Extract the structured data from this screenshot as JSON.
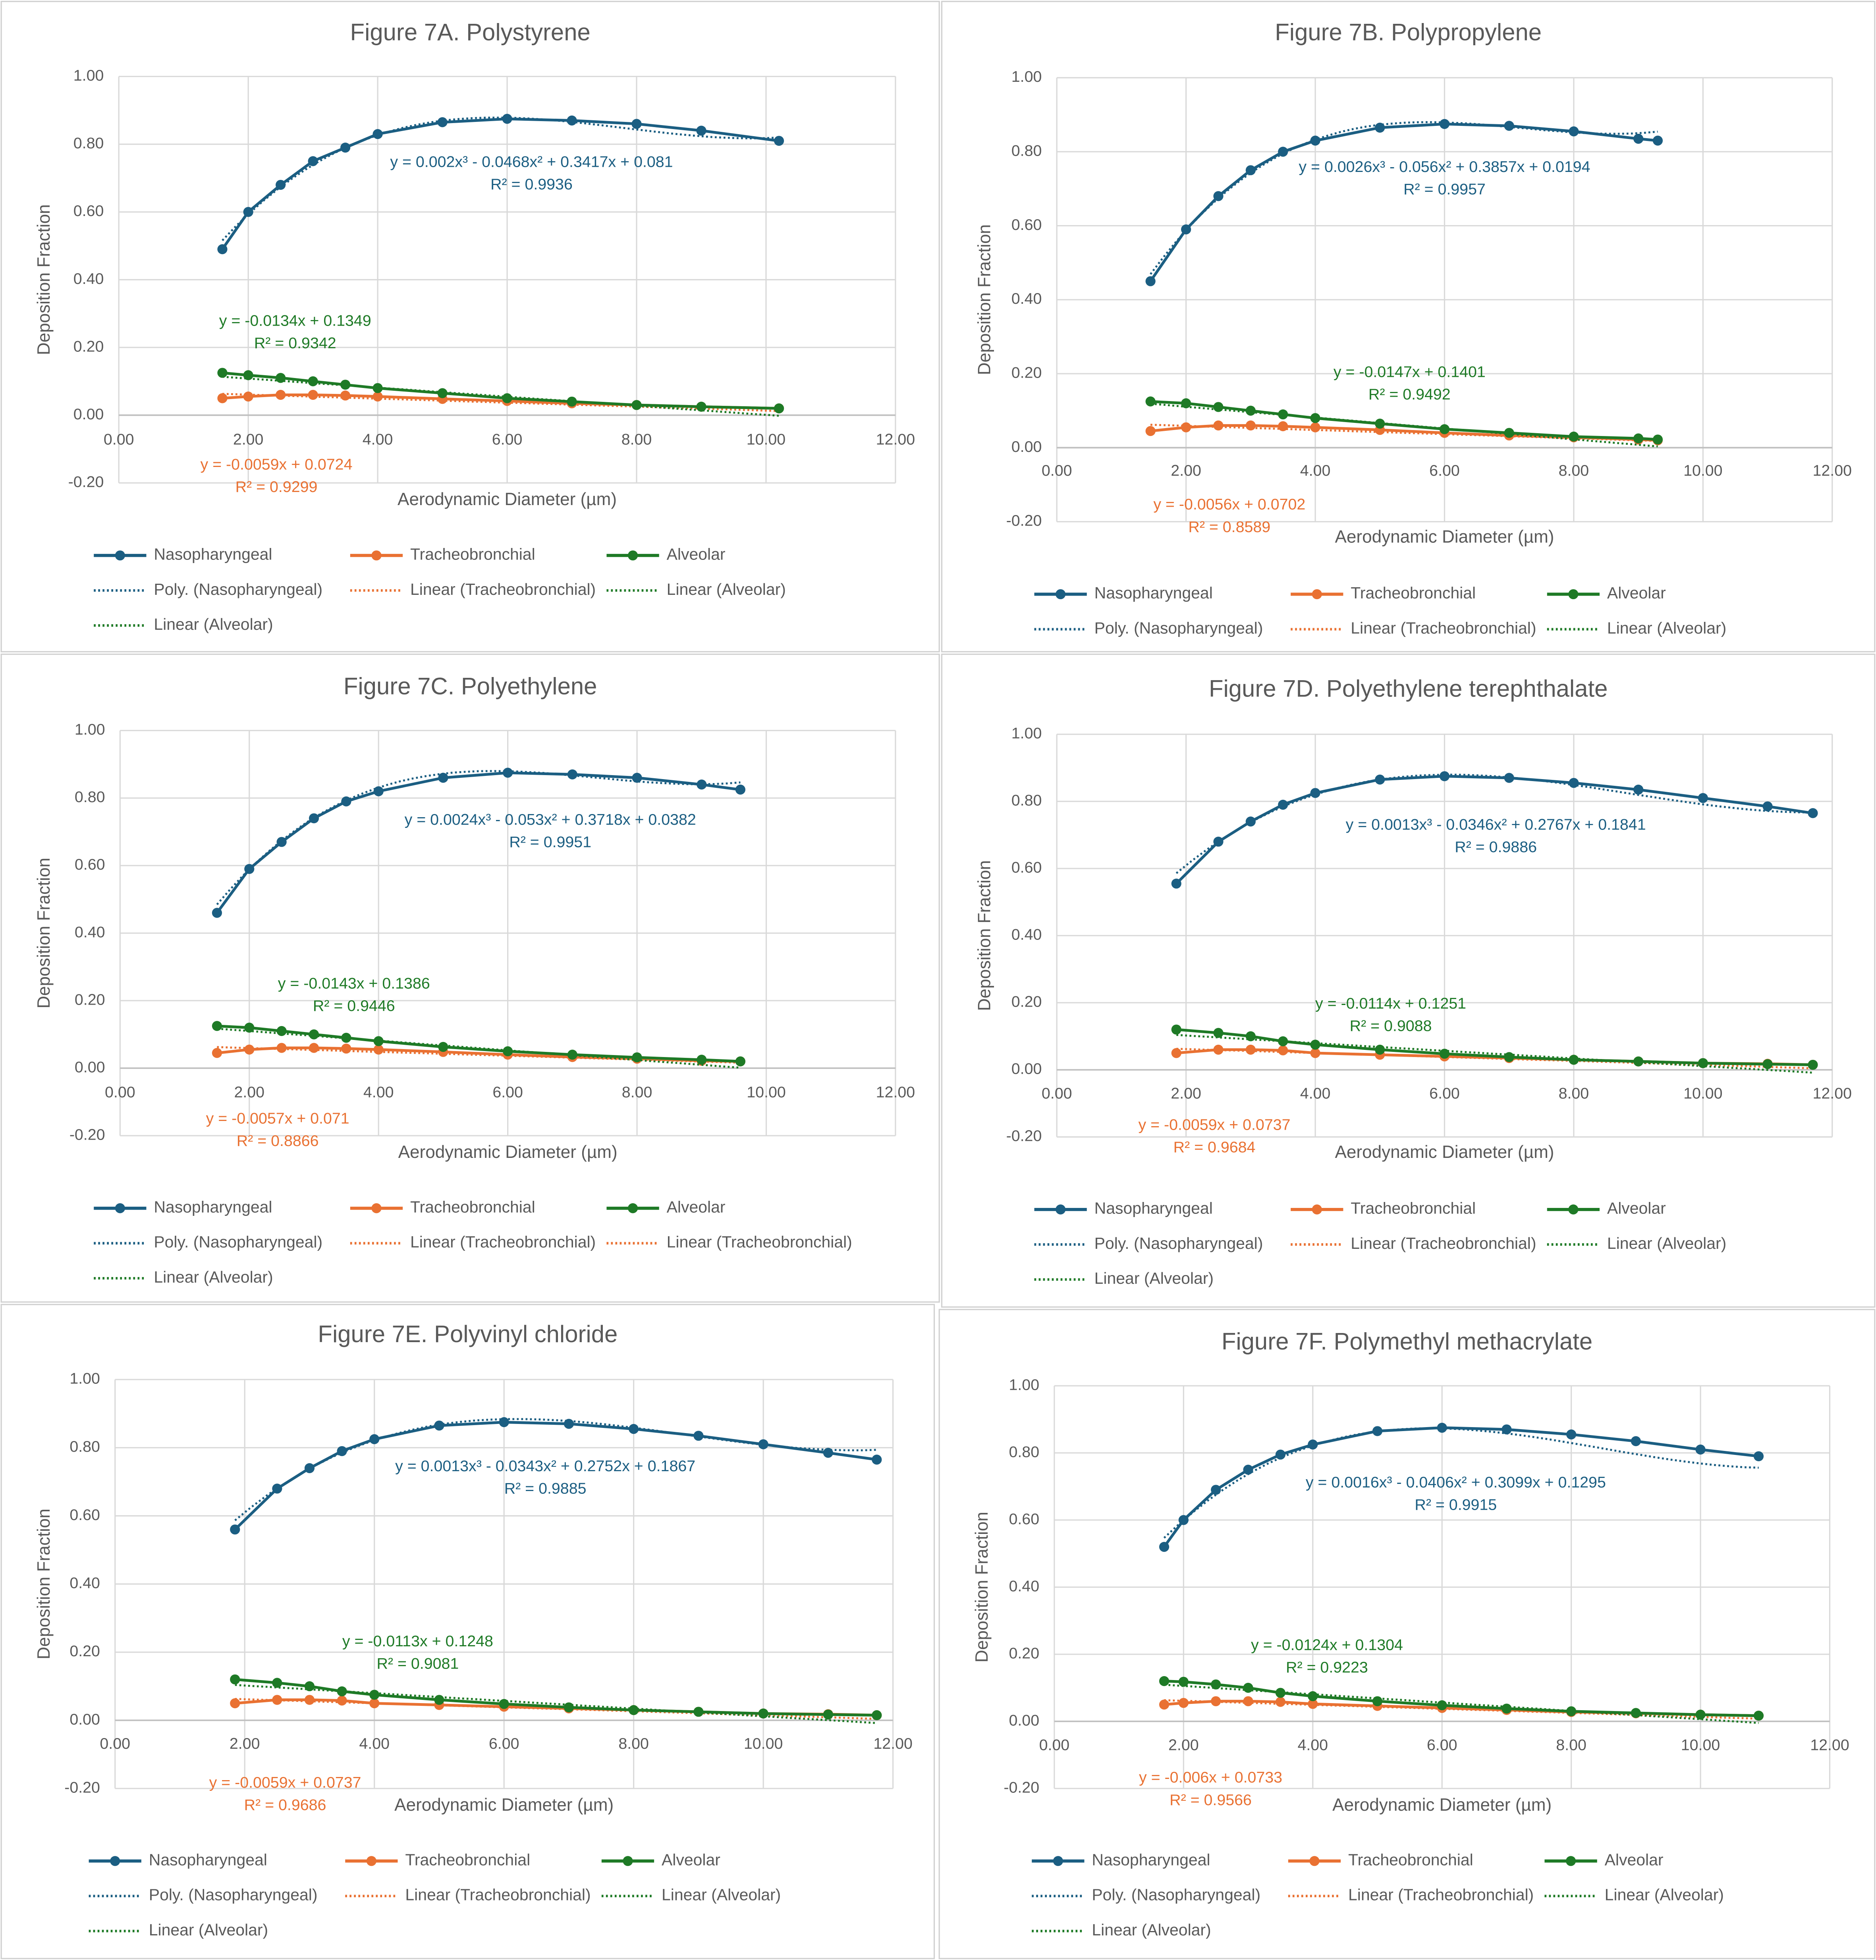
{
  "colors": {
    "Nasopharyngeal": "#1b5e82",
    "Tracheobronchial": "#e97132",
    "Alveolar": "#1e7a26",
    "grid": "#d9d9d9",
    "text": "#595959"
  },
  "chart_data": [
    {
      "type": "scatter",
      "title": "Figure 7A. Polystyrene",
      "xlabel": "Aerodynamic Diameter (µm)",
      "ylabel": "Deposition Fraction",
      "xlim": [
        0,
        12
      ],
      "ylim": [
        -0.2,
        1.0
      ],
      "grid": true,
      "legend": "bottom",
      "xticks": [
        "0.00",
        "2.00",
        "4.00",
        "6.00",
        "8.00",
        "10.00",
        "12.00"
      ],
      "yticks": [
        "-0.20",
        "0.00",
        "0.20",
        "0.40",
        "0.60",
        "0.80",
        "1.00"
      ],
      "x": [
        1.6,
        2,
        2.5,
        3,
        3.5,
        4,
        5,
        6,
        7,
        8,
        9,
        10.2
      ],
      "series": [
        {
          "name": "Nasopharyngeal",
          "values": [
            0.49,
            0.6,
            0.68,
            0.75,
            0.79,
            0.83,
            0.865,
            0.875,
            0.87,
            0.86,
            0.84,
            0.81
          ],
          "trend": {
            "type": "poly",
            "coefficients": [
              0.081,
              0.3417,
              -0.0468,
              0.002
            ],
            "equation": "y = 0.002x³ - 0.0468x² + 0.3417x + 0.081",
            "r2": "R² = 0.9936"
          }
        },
        {
          "name": "Tracheobronchial",
          "values": [
            0.05,
            0.055,
            0.06,
            0.06,
            0.058,
            0.055,
            0.048,
            0.042,
            0.035,
            0.03,
            0.025,
            0.02
          ],
          "trend": {
            "type": "linear",
            "coefficients": [
              0.0724,
              -0.0059
            ],
            "equation": "y = -0.0059x + 0.0724",
            "r2": "R² = 0.9299"
          }
        },
        {
          "name": "Alveolar",
          "values": [
            0.125,
            0.118,
            0.11,
            0.1,
            0.09,
            0.08,
            0.065,
            0.05,
            0.04,
            0.03,
            0.025,
            0.02
          ],
          "trend": {
            "type": "linear",
            "coefficients": [
              0.1349,
              -0.0134
            ],
            "equation": "y = -0.0134x + 0.1349",
            "r2": "R² = 0.9342"
          }
        }
      ],
      "legend_entries": [
        "Nasopharyngeal",
        "Tracheobronchial",
        "Alveolar",
        "Poly. (Nasopharyngeal)",
        "Linear (Tracheobronchial)",
        "Linear (Alveolar)",
        "Linear (Alveolar)"
      ]
    },
    {
      "type": "scatter",
      "title": "Figure 7B. Polypropylene",
      "xlabel": "Aerodynamic Diameter (µm)",
      "ylabel": "Deposition Fraction",
      "xlim": [
        0,
        12
      ],
      "ylim": [
        -0.2,
        1.0
      ],
      "grid": true,
      "legend": "bottom",
      "xticks": [
        "0.00",
        "2.00",
        "4.00",
        "6.00",
        "8.00",
        "10.00",
        "12.00"
      ],
      "yticks": [
        "-0.20",
        "0.00",
        "0.20",
        "0.40",
        "0.60",
        "0.80",
        "1.00"
      ],
      "x": [
        1.45,
        2,
        2.5,
        3,
        3.5,
        4,
        5,
        6,
        7,
        8,
        9,
        9.3
      ],
      "series": [
        {
          "name": "Nasopharyngeal",
          "values": [
            0.45,
            0.59,
            0.68,
            0.75,
            0.8,
            0.83,
            0.865,
            0.875,
            0.87,
            0.855,
            0.835,
            0.83
          ],
          "trend": {
            "type": "poly",
            "coefficients": [
              0.0194,
              0.3857,
              -0.056,
              0.0026
            ],
            "equation": "y = 0.0026x³ - 0.056x² + 0.3857x + 0.0194",
            "r2": "R² = 0.9957"
          }
        },
        {
          "name": "Tracheobronchial",
          "values": [
            0.045,
            0.055,
            0.06,
            0.06,
            0.058,
            0.055,
            0.048,
            0.04,
            0.033,
            0.028,
            0.022,
            0.02
          ],
          "trend": {
            "type": "linear",
            "coefficients": [
              0.0702,
              -0.0056
            ],
            "equation": "y = -0.0056x + 0.0702",
            "r2": "R² = 0.8589"
          }
        },
        {
          "name": "Alveolar",
          "values": [
            0.125,
            0.12,
            0.11,
            0.1,
            0.09,
            0.08,
            0.065,
            0.05,
            0.04,
            0.03,
            0.025,
            0.022
          ],
          "trend": {
            "type": "linear",
            "coefficients": [
              0.1401,
              -0.0147
            ],
            "equation": "y = -0.0147x + 0.1401",
            "r2": "R² = 0.9492"
          }
        }
      ],
      "legend_entries": [
        "Nasopharyngeal",
        "Tracheobronchial",
        "Alveolar",
        "Poly. (Nasopharyngeal)",
        "Linear (Tracheobronchial)",
        "Linear (Alveolar)"
      ]
    },
    {
      "type": "scatter",
      "title": "Figure 7C. Polyethylene",
      "xlabel": "Aerodynamic Diameter (µm)",
      "ylabel": "Deposition Fraction",
      "xlim": [
        0,
        12
      ],
      "ylim": [
        -0.2,
        1.0
      ],
      "grid": true,
      "legend": "bottom",
      "xticks": [
        "0.00",
        "2.00",
        "4.00",
        "6.00",
        "8.00",
        "10.00",
        "12.00"
      ],
      "yticks": [
        "-0.20",
        "0.00",
        "0.20",
        "0.40",
        "0.60",
        "0.80",
        "1.00"
      ],
      "x": [
        1.5,
        2,
        2.5,
        3,
        3.5,
        4,
        5,
        6,
        7,
        8,
        9,
        9.6
      ],
      "series": [
        {
          "name": "Nasopharyngeal",
          "values": [
            0.46,
            0.59,
            0.67,
            0.74,
            0.79,
            0.82,
            0.86,
            0.875,
            0.87,
            0.86,
            0.84,
            0.825
          ],
          "trend": {
            "type": "poly",
            "coefficients": [
              0.0382,
              0.3718,
              -0.053,
              0.0024
            ],
            "equation": "y = 0.0024x³ - 0.053x² + 0.3718x + 0.0382",
            "r2": "R² = 0.9951"
          }
        },
        {
          "name": "Tracheobronchial",
          "values": [
            0.045,
            0.055,
            0.06,
            0.06,
            0.058,
            0.055,
            0.048,
            0.04,
            0.033,
            0.028,
            0.022,
            0.02
          ],
          "trend": {
            "type": "linear",
            "coefficients": [
              0.071,
              -0.0057
            ],
            "equation": "y = -0.0057x + 0.071",
            "r2": "R² = 0.8866"
          }
        },
        {
          "name": "Alveolar",
          "values": [
            0.125,
            0.12,
            0.11,
            0.1,
            0.09,
            0.08,
            0.063,
            0.05,
            0.04,
            0.032,
            0.025,
            0.02
          ],
          "trend": {
            "type": "linear",
            "coefficients": [
              0.1386,
              -0.0143
            ],
            "equation": "y = -0.0143x + 0.1386",
            "r2": "R² = 0.9446"
          }
        }
      ],
      "legend_entries": [
        "Nasopharyngeal",
        "Tracheobronchial",
        "Alveolar",
        "Poly. (Nasopharyngeal)",
        "Linear (Tracheobronchial)",
        "Linear (Tracheobronchial)",
        "Linear (Alveolar)"
      ]
    },
    {
      "type": "scatter",
      "title": "Figure 7D. Polyethylene terephthalate",
      "xlabel": "Aerodynamic Diameter (µm)",
      "ylabel": "Deposition Fraction",
      "xlim": [
        0,
        12
      ],
      "ylim": [
        -0.2,
        1.0
      ],
      "grid": true,
      "legend": "bottom",
      "xticks": [
        "0.00",
        "2.00",
        "4.00",
        "6.00",
        "8.00",
        "10.00",
        "12.00"
      ],
      "yticks": [
        "-0.20",
        "0.00",
        "0.20",
        "0.40",
        "0.60",
        "0.80",
        "1.00"
      ],
      "x": [
        1.85,
        2.5,
        3,
        3.5,
        4,
        5,
        6,
        7,
        8,
        9,
        10,
        11,
        11.7
      ],
      "series": [
        {
          "name": "Nasopharyngeal",
          "values": [
            0.555,
            0.68,
            0.74,
            0.79,
            0.825,
            0.865,
            0.875,
            0.87,
            0.855,
            0.835,
            0.81,
            0.785,
            0.765
          ],
          "trend": {
            "type": "poly",
            "coefficients": [
              0.1841,
              0.2767,
              -0.0346,
              0.0013
            ],
            "equation": "y = 0.0013x³ - 0.0346x² + 0.2767x + 0.1841",
            "r2": "R² = 0.9886"
          }
        },
        {
          "name": "Tracheobronchial",
          "values": [
            0.05,
            0.06,
            0.06,
            0.058,
            0.05,
            0.045,
            0.04,
            0.035,
            0.03,
            0.025,
            0.02,
            0.018,
            0.015
          ],
          "trend": {
            "type": "linear",
            "coefficients": [
              0.0737,
              -0.0059
            ],
            "equation": "y = -0.0059x + 0.0737",
            "r2": "R² = 0.9684"
          }
        },
        {
          "name": "Alveolar",
          "values": [
            0.12,
            0.11,
            0.1,
            0.085,
            0.075,
            0.06,
            0.048,
            0.038,
            0.03,
            0.025,
            0.02,
            0.017,
            0.015
          ],
          "trend": {
            "type": "linear",
            "coefficients": [
              0.1251,
              -0.0114
            ],
            "equation": "y = -0.0114x + 0.1251",
            "r2": "R² = 0.9088"
          }
        }
      ],
      "legend_entries": [
        "Nasopharyngeal",
        "Tracheobronchial",
        "Alveolar",
        "Poly. (Nasopharyngeal)",
        "Linear (Tracheobronchial)",
        "Linear (Alveolar)",
        "Linear (Alveolar)"
      ]
    },
    {
      "type": "scatter",
      "title": "Figure 7E. Polyvinyl chloride",
      "xlabel": "Aerodynamic Diameter (µm)",
      "ylabel": "Deposition Fraction",
      "xlim": [
        0,
        12
      ],
      "ylim": [
        -0.2,
        1.0
      ],
      "grid": true,
      "legend": "bottom",
      "xticks": [
        "0.00",
        "2.00",
        "4.00",
        "6.00",
        "8.00",
        "10.00",
        "12.00"
      ],
      "yticks": [
        "-0.20",
        "0.00",
        "0.20",
        "0.40",
        "0.60",
        "0.80",
        "1.00"
      ],
      "x": [
        1.85,
        2.5,
        3,
        3.5,
        4,
        5,
        6,
        7,
        8,
        9,
        10,
        11,
        11.75
      ],
      "series": [
        {
          "name": "Nasopharyngeal",
          "values": [
            0.56,
            0.68,
            0.74,
            0.79,
            0.825,
            0.865,
            0.875,
            0.87,
            0.855,
            0.835,
            0.81,
            0.785,
            0.765
          ],
          "trend": {
            "type": "poly",
            "coefficients": [
              0.1867,
              0.2752,
              -0.0343,
              0.0013
            ],
            "equation": "y = 0.0013x³ - 0.0343x² + 0.2752x + 0.1867",
            "r2": "R² = 0.9885"
          }
        },
        {
          "name": "Tracheobronchial",
          "values": [
            0.05,
            0.06,
            0.06,
            0.058,
            0.05,
            0.045,
            0.04,
            0.035,
            0.03,
            0.025,
            0.02,
            0.018,
            0.015
          ],
          "trend": {
            "type": "linear",
            "coefficients": [
              0.0737,
              -0.0059
            ],
            "equation": "y = -0.0059x + 0.0737",
            "r2": "R² = 0.9686"
          }
        },
        {
          "name": "Alveolar",
          "values": [
            0.12,
            0.11,
            0.1,
            0.085,
            0.075,
            0.06,
            0.048,
            0.038,
            0.03,
            0.025,
            0.02,
            0.017,
            0.015
          ],
          "trend": {
            "type": "linear",
            "coefficients": [
              0.1248,
              -0.0113
            ],
            "equation": "y = -0.0113x + 0.1248",
            "r2": "R² = 0.9081"
          }
        }
      ],
      "legend_entries": [
        "Nasopharyngeal",
        "Tracheobronchial",
        "Alveolar",
        "Poly. (Nasopharyngeal)",
        "Linear (Tracheobronchial)",
        "Linear (Alveolar)",
        "Linear (Alveolar)"
      ]
    },
    {
      "type": "scatter",
      "title": "Figure 7F. Polymethyl methacrylate",
      "xlabel": "Aerodynamic Diameter (µm)",
      "ylabel": "Deposition Fraction",
      "xlim": [
        0,
        12
      ],
      "ylim": [
        -0.2,
        1.0
      ],
      "grid": true,
      "legend": "bottom",
      "xticks": [
        "0.00",
        "2.00",
        "4.00",
        "6.00",
        "8.00",
        "10.00",
        "12.00"
      ],
      "yticks": [
        "-0.20",
        "0.00",
        "0.20",
        "0.40",
        "0.60",
        "0.80",
        "1.00"
      ],
      "x": [
        1.7,
        2,
        2.5,
        3,
        3.5,
        4,
        5,
        6,
        7,
        8,
        9,
        10,
        10.9
      ],
      "series": [
        {
          "name": "Nasopharyngeal",
          "values": [
            0.52,
            0.6,
            0.69,
            0.75,
            0.795,
            0.825,
            0.865,
            0.875,
            0.87,
            0.855,
            0.835,
            0.81,
            0.79
          ],
          "trend": {
            "type": "poly",
            "coefficients": [
              0.1295,
              0.3099,
              -0.0406,
              0.0016
            ],
            "equation": "y = 0.0016x³ - 0.0406x² + 0.3099x + 0.1295",
            "r2": "R² = 0.9915"
          }
        },
        {
          "name": "Tracheobronchial",
          "values": [
            0.05,
            0.055,
            0.06,
            0.06,
            0.058,
            0.052,
            0.046,
            0.04,
            0.034,
            0.028,
            0.024,
            0.02,
            0.017
          ],
          "trend": {
            "type": "linear",
            "coefficients": [
              0.0733,
              -0.006
            ],
            "equation": "y = -0.006x + 0.0733",
            "r2": "R² = 0.9566"
          }
        },
        {
          "name": "Alveolar",
          "values": [
            0.12,
            0.118,
            0.11,
            0.1,
            0.085,
            0.075,
            0.06,
            0.048,
            0.038,
            0.03,
            0.025,
            0.02,
            0.017
          ],
          "trend": {
            "type": "linear",
            "coefficients": [
              0.1304,
              -0.0124
            ],
            "equation": "y = -0.0124x + 0.1304",
            "r2": "R² = 0.9223"
          }
        }
      ],
      "legend_entries": [
        "Nasopharyngeal",
        "Tracheobronchial",
        "Alveolar",
        "Poly. (Nasopharyngeal)",
        "Linear (Tracheobronchial)",
        "Linear (Alveolar)",
        "Linear (Alveolar)"
      ]
    }
  ]
}
